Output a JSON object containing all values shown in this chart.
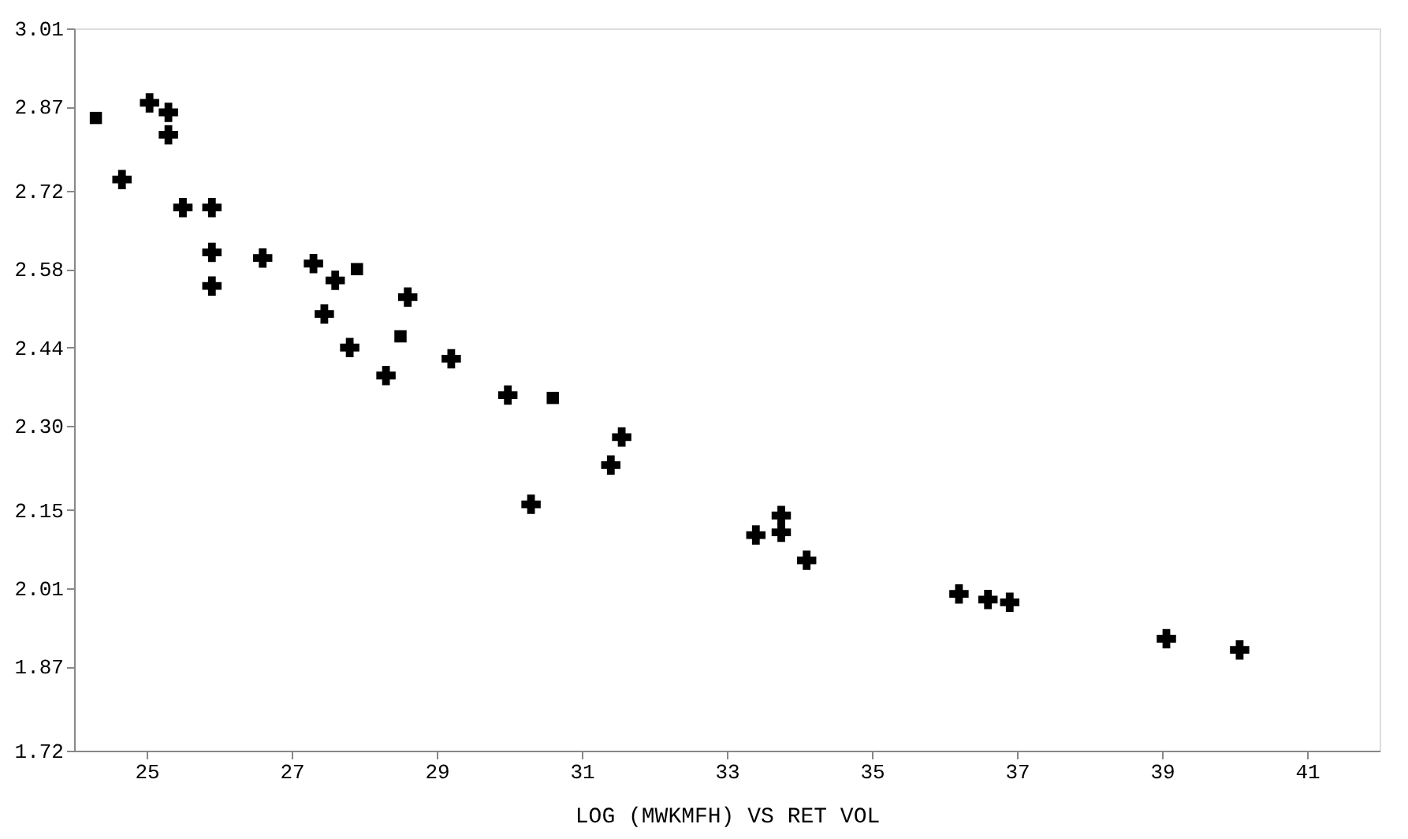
{
  "chart_data": {
    "type": "scatter",
    "xlabel": "LOG (MWKMFH) VS RET VOL",
    "series": [
      {
        "color": "#000000",
        "marker": "cross",
        "x": [
          25.04,
          25.3,
          25.3,
          24.66,
          25.5,
          25.9,
          25.9,
          25.9,
          26.6,
          27.3,
          27.6,
          27.45,
          27.8,
          28.3,
          28.6,
          29.2,
          29.98,
          31.55,
          31.4,
          30.3,
          33.4,
          33.75,
          33.75,
          34.1,
          36.2,
          36.6,
          36.9,
          39.06,
          40.07
        ],
        "values": [
          2.877,
          2.86,
          2.82,
          2.74,
          2.69,
          2.69,
          2.61,
          2.55,
          2.6,
          2.59,
          2.56,
          2.5,
          2.44,
          2.39,
          2.53,
          2.42,
          2.355,
          2.28,
          2.23,
          2.16,
          2.105,
          2.11,
          2.14,
          2.06,
          2.0,
          1.99,
          1.985,
          1.92,
          1.9
        ]
      },
      {
        "color": "#000000",
        "marker": "square",
        "x": [
          24.3,
          27.9,
          28.5,
          30.6
        ],
        "values": [
          2.85,
          2.58,
          2.46,
          2.35
        ]
      }
    ],
    "xlim": [
      24,
      42
    ],
    "xticks": [
      25,
      27,
      29,
      31,
      33,
      35,
      37,
      39,
      41
    ],
    "ylim": [
      1.72,
      3.01
    ],
    "yticks": [
      1.72,
      1.87,
      2.01,
      2.15,
      {
        "value": 2.3,
        "label": "2.30"
      },
      2.44,
      2.58,
      2.72,
      2.87,
      3.01
    ],
    "grid": false
  }
}
